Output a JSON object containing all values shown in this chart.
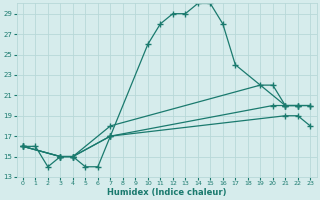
{
  "title": "",
  "xlabel": "Humidex (Indice chaleur)",
  "bg_color": "#d6ecec",
  "line_color": "#1a7a6e",
  "grid_color": "#b8d8d8",
  "xlim": [
    -0.5,
    23.5
  ],
  "ylim": [
    13,
    30
  ],
  "yticks": [
    13,
    15,
    17,
    19,
    21,
    23,
    25,
    27,
    29
  ],
  "xticks": [
    0,
    1,
    2,
    3,
    4,
    5,
    6,
    7,
    8,
    9,
    10,
    11,
    12,
    13,
    14,
    15,
    16,
    17,
    18,
    19,
    20,
    21,
    22,
    23
  ],
  "series": [
    {
      "x": [
        0,
        1,
        2,
        3,
        4,
        5,
        6,
        7,
        10,
        11,
        12,
        13,
        14,
        15,
        16,
        17,
        21,
        22
      ],
      "y": [
        16,
        16,
        14,
        15,
        15,
        14,
        14,
        17,
        26,
        28,
        29,
        29,
        30,
        30,
        28,
        24,
        20,
        20
      ]
    },
    {
      "x": [
        0,
        3,
        4,
        7,
        19,
        20,
        21,
        22,
        23
      ],
      "y": [
        16,
        15,
        15,
        18,
        22,
        22,
        20,
        20,
        20
      ]
    },
    {
      "x": [
        0,
        3,
        4,
        7,
        20,
        21,
        22,
        23
      ],
      "y": [
        16,
        15,
        15,
        17,
        20,
        20,
        20,
        20
      ]
    },
    {
      "x": [
        0,
        3,
        4,
        7,
        21,
        22,
        23
      ],
      "y": [
        16,
        15,
        15,
        17,
        19,
        19,
        18
      ]
    }
  ]
}
